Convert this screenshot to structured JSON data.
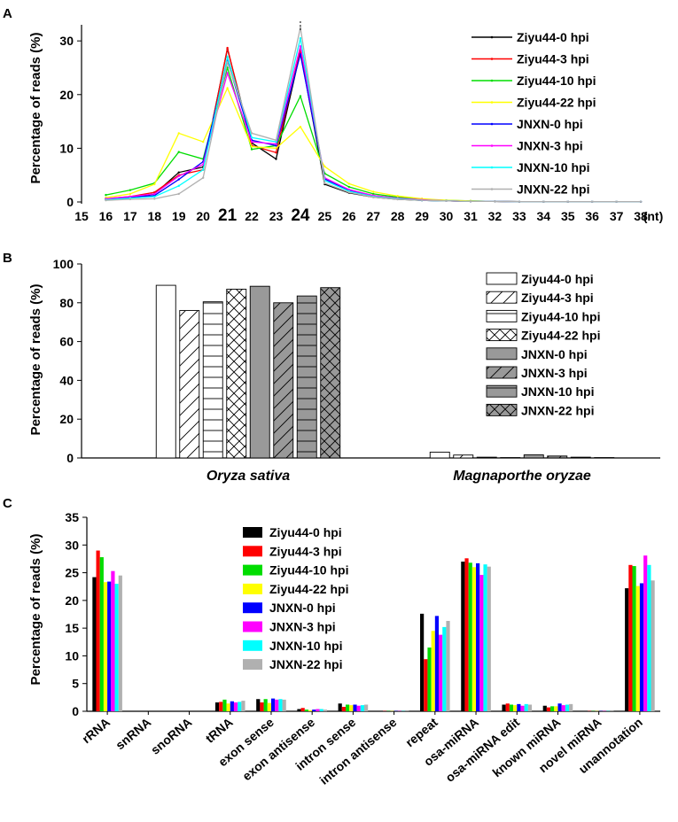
{
  "colors": {
    "series": [
      "#000000",
      "#ff0000",
      "#00dd00",
      "#ffff00",
      "#0000ff",
      "#ff00ff",
      "#00ffff",
      "#b0b0b0"
    ],
    "axis": "#000000",
    "bar_fill_b": [
      "#ffffff",
      "#ffffff",
      "#ffffff",
      "#ffffff",
      "#999999",
      "#999999",
      "#999999",
      "#999999"
    ]
  },
  "chart_data": [
    {
      "id": "A",
      "panel_label": "A",
      "type": "line",
      "ylabel": "Percentage of reads (%)",
      "xlabel": "",
      "x_unit_label": "(nt)",
      "x_ticks": [
        "15",
        "16",
        "17",
        "18",
        "19",
        "20",
        "21",
        "22",
        "23",
        "24",
        "25",
        "26",
        "27",
        "28",
        "29",
        "30",
        "31",
        "32",
        "33",
        "34",
        "35",
        "36",
        "37",
        "38"
      ],
      "x_large_ticks": [
        "21",
        "24"
      ],
      "ylim": [
        0,
        33
      ],
      "y_ticks": [
        "0",
        "10",
        "20",
        "30"
      ],
      "x": [
        16,
        17,
        18,
        19,
        20,
        21,
        22,
        23,
        24,
        25,
        26,
        27,
        28,
        29,
        30,
        31,
        32,
        33,
        34,
        35,
        36,
        37,
        38
      ],
      "series": [
        {
          "name": "Ziyu44-0 hpi",
          "values": [
            0.5,
            0.8,
            1.5,
            5.5,
            6.5,
            28.5,
            11.0,
            8.0,
            28.0,
            3.3,
            1.7,
            0.9,
            0.5,
            0.3,
            0.2,
            0.1,
            0.1,
            0.05,
            0.05,
            0.05,
            0.05,
            0.05,
            0.05
          ]
        },
        {
          "name": "Ziyu44-3 hpi",
          "values": [
            0.6,
            1.0,
            1.8,
            5.0,
            6.0,
            28.7,
            10.5,
            9.2,
            28.3,
            4.3,
            2.2,
            1.2,
            0.7,
            0.4,
            0.2,
            0.1,
            0.1,
            0.05,
            0.05,
            0.05,
            0.05,
            0.05,
            0.05
          ]
        },
        {
          "name": "Ziyu44-10 hpi",
          "values": [
            1.3,
            2.2,
            3.5,
            9.3,
            8.0,
            25.0,
            9.8,
            10.5,
            19.7,
            5.3,
            2.8,
            1.5,
            0.9,
            0.5,
            0.3,
            0.2,
            0.1,
            0.05,
            0.05,
            0.05,
            0.05,
            0.05,
            0.05
          ]
        },
        {
          "name": "Ziyu44-22 hpi",
          "values": [
            0.8,
            1.5,
            3.3,
            12.8,
            11.2,
            21.2,
            10.3,
            10.0,
            14.0,
            6.6,
            3.4,
            1.9,
            1.1,
            0.6,
            0.3,
            0.2,
            0.1,
            0.05,
            0.05,
            0.05,
            0.05,
            0.05,
            0.05
          ]
        },
        {
          "name": "JNXN-0 hpi",
          "values": [
            0.5,
            0.9,
            1.2,
            4.2,
            7.5,
            26.3,
            11.5,
            10.5,
            27.5,
            4.3,
            2.1,
            1.1,
            0.6,
            0.3,
            0.2,
            0.1,
            0.1,
            0.05,
            0.05,
            0.05,
            0.05,
            0.05,
            0.05
          ]
        },
        {
          "name": "JNXN-3 hpi",
          "values": [
            0.6,
            1.0,
            1.5,
            4.8,
            7.0,
            24.0,
            11.2,
            10.8,
            29.0,
            4.5,
            2.3,
            1.2,
            0.7,
            0.4,
            0.2,
            0.1,
            0.1,
            0.05,
            0.05,
            0.05,
            0.05,
            0.05,
            0.05
          ]
        },
        {
          "name": "JNXN-10 hpi",
          "values": [
            0.4,
            0.7,
            1.0,
            3.0,
            6.0,
            27.0,
            12.0,
            11.2,
            30.5,
            4.0,
            2.0,
            1.0,
            0.6,
            0.3,
            0.2,
            0.1,
            0.1,
            0.05,
            0.05,
            0.05,
            0.05,
            0.05,
            0.05
          ]
        },
        {
          "name": "JNXN-22 hpi",
          "values": [
            0.3,
            0.5,
            0.6,
            1.5,
            4.5,
            26.0,
            12.8,
            11.5,
            32.5,
            3.5,
            1.8,
            0.9,
            0.5,
            0.3,
            0.2,
            0.1,
            0.1,
            0.05,
            0.05,
            0.05,
            0.05,
            0.05,
            0.05
          ]
        }
      ]
    },
    {
      "id": "B",
      "panel_label": "B",
      "type": "bar",
      "ylabel": "Percentage of reads (%)",
      "categories": [
        "Oryza sativa",
        "Magnaporthe oryzae"
      ],
      "ylim": [
        0,
        100
      ],
      "y_ticks": [
        "0",
        "20",
        "40",
        "60",
        "80",
        "100"
      ],
      "series": [
        {
          "name": "Ziyu44-0 hpi",
          "values": [
            89.0,
            3.0
          ]
        },
        {
          "name": "Ziyu44-3 hpi",
          "values": [
            76.0,
            1.5
          ]
        },
        {
          "name": "Ziyu44-10 hpi",
          "values": [
            80.5,
            0.4
          ]
        },
        {
          "name": "Ziyu44-22 hpi",
          "values": [
            87.0,
            0.2
          ]
        },
        {
          "name": "JNXN-0 hpi",
          "values": [
            88.5,
            1.6
          ]
        },
        {
          "name": "JNXN-3 hpi",
          "values": [
            80.0,
            1.0
          ]
        },
        {
          "name": "JNXN-10 hpi",
          "values": [
            83.5,
            0.4
          ]
        },
        {
          "name": "JNXN-22 hpi",
          "values": [
            87.8,
            0.2
          ]
        }
      ]
    },
    {
      "id": "C",
      "panel_label": "C",
      "type": "bar",
      "ylabel": "Percentage of reads (%)",
      "categories": [
        "rRNA",
        "snRNA",
        "snoRNA",
        "tRNA",
        "exon sense",
        "exon antisense",
        "intron sense",
        "intron antisense",
        "repeat",
        "osa-miRNA",
        "osa-miRNA edit",
        "known miRNA",
        "novel miRNA",
        "unannotation"
      ],
      "ylim": [
        0,
        35
      ],
      "y_ticks": [
        "0",
        "5",
        "10",
        "15",
        "20",
        "25",
        "30",
        "35"
      ],
      "series": [
        {
          "name": "Ziyu44-0 hpi",
          "values": [
            24.2,
            0,
            0,
            1.6,
            2.2,
            0.4,
            1.4,
            0.05,
            17.6,
            27.0,
            1.2,
            1.0,
            0.05,
            22.2
          ]
        },
        {
          "name": "Ziyu44-3 hpi",
          "values": [
            29.0,
            0,
            0,
            1.7,
            1.6,
            0.6,
            0.8,
            0.05,
            9.4,
            27.6,
            1.4,
            0.7,
            0.05,
            26.4
          ]
        },
        {
          "name": "Ziyu44-10 hpi",
          "values": [
            27.8,
            0,
            0,
            2.1,
            2.2,
            0.3,
            1.2,
            0.05,
            11.5,
            26.8,
            1.2,
            0.9,
            0.05,
            26.2
          ]
        },
        {
          "name": "Ziyu44-22 hpi",
          "values": [
            23.3,
            0,
            0,
            1.4,
            1.5,
            0.2,
            1.1,
            0.05,
            14.5,
            26.0,
            1.1,
            0.9,
            0.05,
            22.6
          ]
        },
        {
          "name": "JNXN-0 hpi",
          "values": [
            23.4,
            0,
            0,
            1.8,
            2.3,
            0.3,
            1.2,
            0.05,
            17.2,
            26.7,
            1.3,
            1.4,
            0.05,
            23.1
          ]
        },
        {
          "name": "JNXN-3 hpi",
          "values": [
            25.3,
            0,
            0,
            1.6,
            2.1,
            0.4,
            1.0,
            0.05,
            13.8,
            24.6,
            1.0,
            1.1,
            0.05,
            28.1
          ]
        },
        {
          "name": "JNXN-10 hpi",
          "values": [
            23.0,
            0,
            0,
            1.7,
            2.2,
            0.4,
            1.1,
            0.05,
            15.2,
            26.5,
            1.3,
            1.2,
            0.05,
            26.4
          ]
        },
        {
          "name": "JNXN-22 hpi",
          "values": [
            24.5,
            0,
            0,
            1.9,
            2.1,
            0.3,
            1.2,
            0.05,
            16.3,
            26.1,
            1.2,
            1.3,
            0.05,
            23.6
          ]
        }
      ]
    }
  ]
}
